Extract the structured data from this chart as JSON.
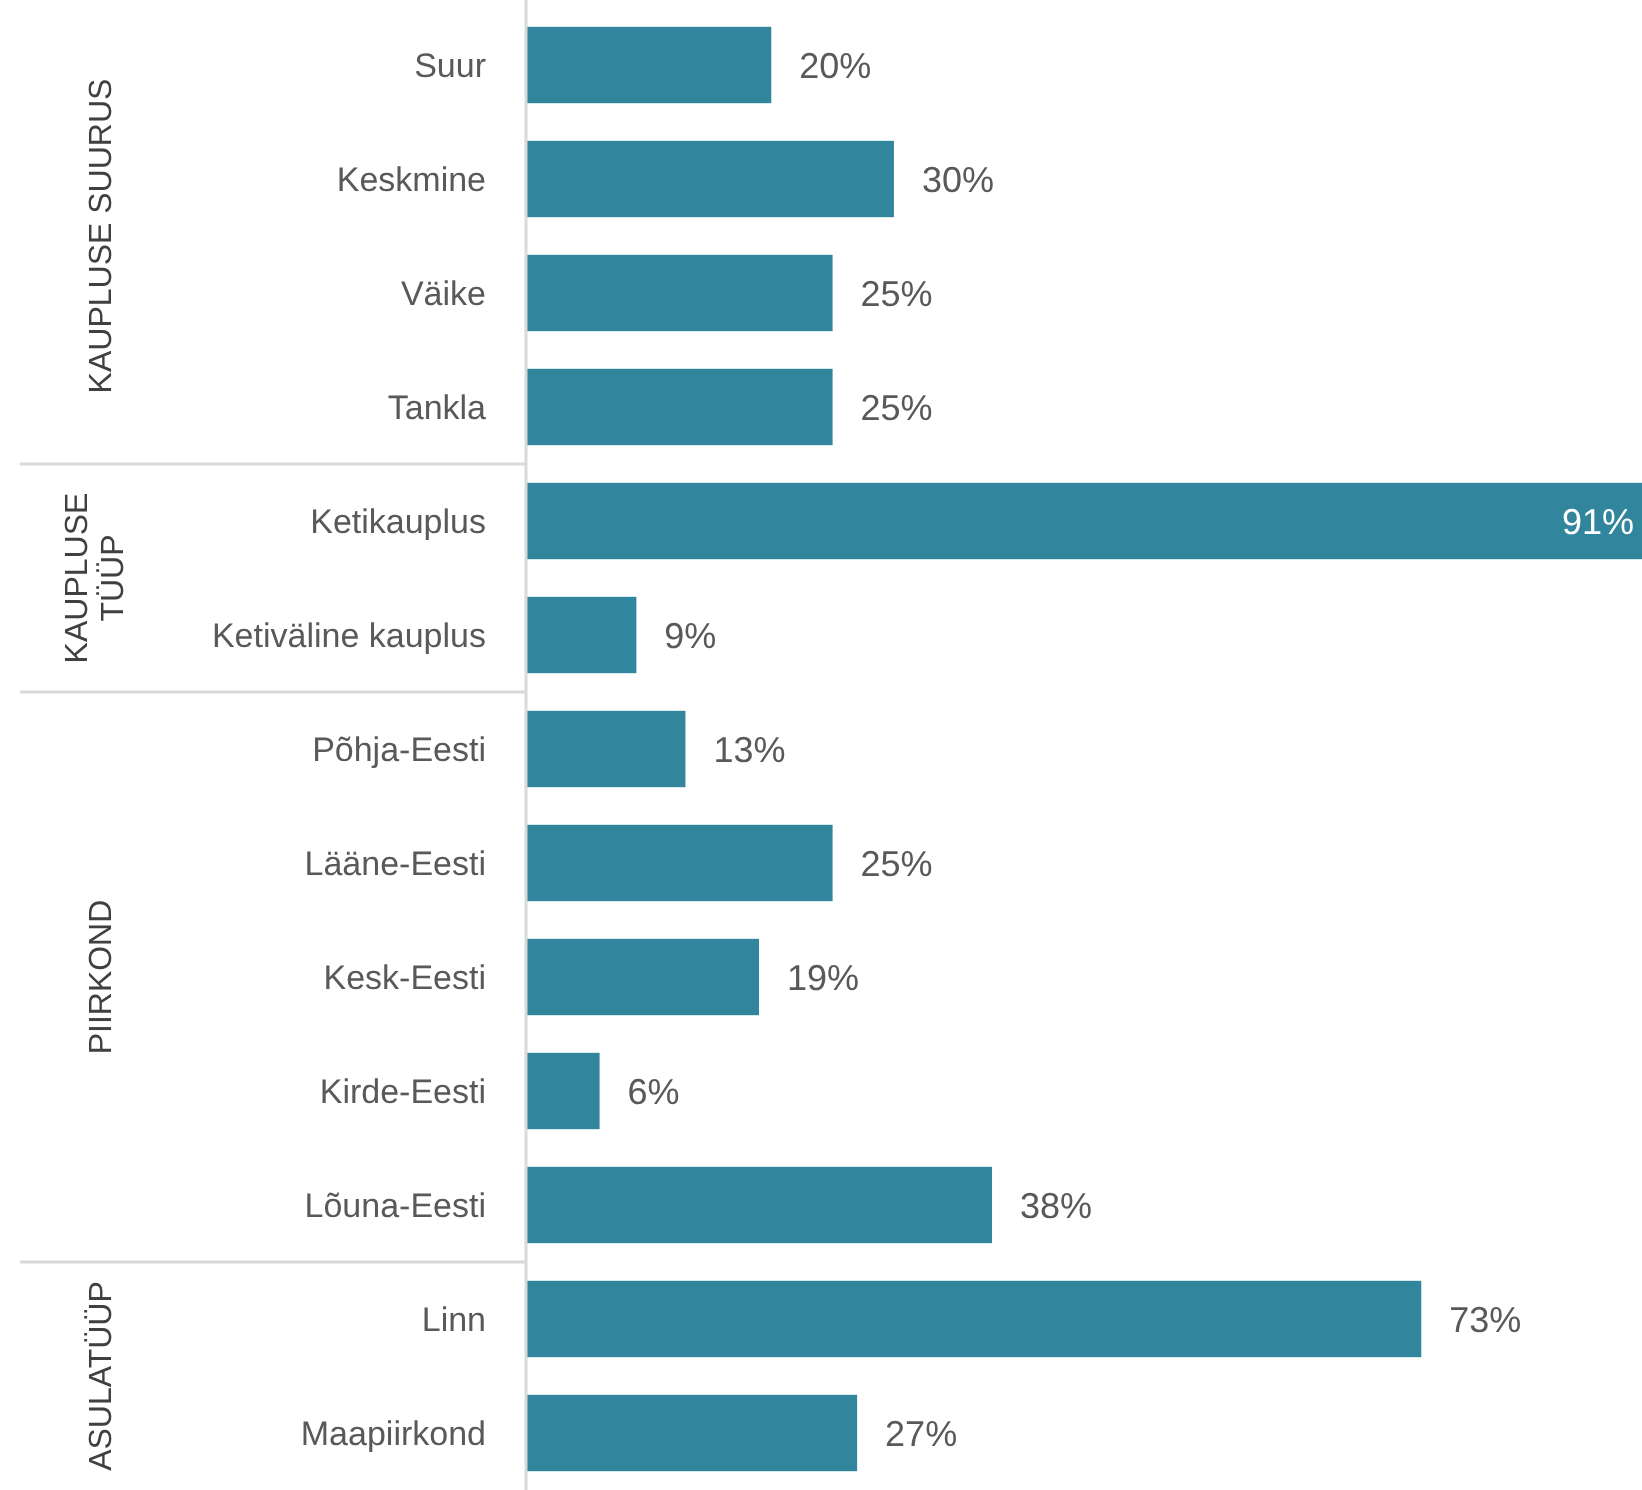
{
  "chart_data": {
    "type": "bar",
    "orientation": "horizontal",
    "categories": [
      "Suur",
      "Keskmine",
      "Väike",
      "Tankla",
      "Ketikauplus",
      "Ketiväline kauplus",
      "Põhja-Eesti",
      "Lääne-Eesti",
      "Kesk-Eesti",
      "Kirde-Eesti",
      "Lõuna-Eesti",
      "Linn",
      "Maapiirkond"
    ],
    "values": [
      20,
      30,
      25,
      25,
      91,
      9,
      13,
      25,
      19,
      6,
      38,
      73,
      27
    ],
    "value_labels": [
      "20%",
      "30%",
      "25%",
      "25%",
      "91%",
      "9%",
      "13%",
      "25%",
      "19%",
      "6%",
      "38%",
      "73%",
      "27%"
    ],
    "color": "#31859c",
    "annotations": [
      "KAUPLUSE SUURUS",
      "KAUPLUSE TÜÜP",
      "PIIRKOND",
      "ASULATÜÜP"
    ]
  }
}
